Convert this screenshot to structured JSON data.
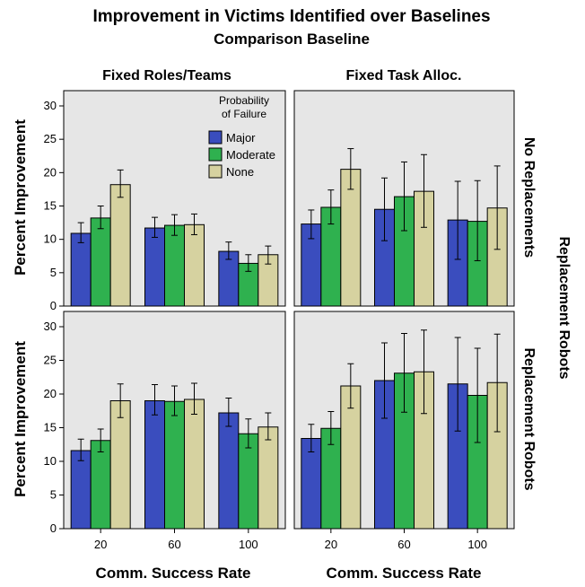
{
  "chart_data": {
    "type": "bar",
    "title": "Improvement in Victims Identified over Baselines",
    "subtitle": "Comparison Baseline",
    "xlabel": "Comm. Success Rate",
    "ylabel": "Percent Improvement",
    "row_group_label": "Replacement Robots",
    "categories": [
      "20",
      "60",
      "100"
    ],
    "ylim": [
      0,
      30
    ],
    "yticks": [
      0,
      5,
      10,
      15,
      20,
      25,
      30
    ],
    "legend": {
      "title": "Probability of Failure",
      "title_lines": [
        "Probability",
        "of Failure"
      ],
      "placement": "top-left panel, upper right",
      "entries": [
        {
          "name": "Major",
          "color": "#3a4dbe"
        },
        {
          "name": "Moderate",
          "color": "#2fb14f"
        },
        {
          "name": "None",
          "color": "#d6d2a0"
        }
      ]
    },
    "panel_background": "#e6e6e6",
    "panels": [
      {
        "column": "Fixed Roles/Teams",
        "row": "No Replacements",
        "series": [
          {
            "name": "Major",
            "values": [
              10.9,
              11.7,
              8.2
            ],
            "err": [
              [
                9.5,
                12.5
              ],
              [
                10.3,
                13.3
              ],
              [
                7.0,
                9.6
              ]
            ]
          },
          {
            "name": "Moderate",
            "values": [
              13.2,
              12.1,
              6.4
            ],
            "err": [
              [
                11.6,
                15.0
              ],
              [
                10.6,
                13.7
              ],
              [
                5.2,
                7.7
              ]
            ]
          },
          {
            "name": "None",
            "values": [
              18.2,
              12.2,
              7.7
            ],
            "err": [
              [
                16.3,
                20.4
              ],
              [
                10.7,
                13.8
              ],
              [
                6.3,
                9.0
              ]
            ]
          }
        ]
      },
      {
        "column": "Fixed Task Alloc.",
        "row": "No Replacements",
        "series": [
          {
            "name": "Major",
            "values": [
              12.3,
              14.5,
              12.9
            ],
            "err": [
              [
                10.1,
                14.4
              ],
              [
                9.8,
                19.2
              ],
              [
                7.0,
                18.7
              ]
            ]
          },
          {
            "name": "Moderate",
            "values": [
              14.8,
              16.4,
              12.7
            ],
            "err": [
              [
                12.3,
                17.4
              ],
              [
                11.3,
                21.6
              ],
              [
                6.8,
                18.8
              ]
            ]
          },
          {
            "name": "None",
            "values": [
              20.5,
              17.2,
              14.7
            ],
            "err": [
              [
                17.5,
                23.6
              ],
              [
                11.8,
                22.7
              ],
              [
                8.5,
                21.0
              ]
            ]
          }
        ]
      },
      {
        "column": "Fixed Roles/Teams",
        "row": "Replacement Robots",
        "series": [
          {
            "name": "Major",
            "values": [
              11.6,
              19.0,
              17.2
            ],
            "err": [
              [
                10.1,
                13.3
              ],
              [
                16.9,
                21.4
              ],
              [
                15.2,
                19.4
              ]
            ]
          },
          {
            "name": "Moderate",
            "values": [
              13.1,
              18.9,
              14.1
            ],
            "err": [
              [
                11.4,
                14.8
              ],
              [
                16.8,
                21.2
              ],
              [
                12.0,
                16.3
              ]
            ]
          },
          {
            "name": "None",
            "values": [
              19.0,
              19.2,
              15.1
            ],
            "err": [
              [
                16.5,
                21.5
              ],
              [
                17.0,
                21.6
              ],
              [
                13.2,
                17.2
              ]
            ]
          }
        ]
      },
      {
        "column": "Fixed Task Alloc.",
        "row": "Replacement Robots",
        "series": [
          {
            "name": "Major",
            "values": [
              13.4,
              22.0,
              21.5
            ],
            "err": [
              [
                11.4,
                15.5
              ],
              [
                16.4,
                27.6
              ],
              [
                14.5,
                28.4
              ]
            ]
          },
          {
            "name": "Moderate",
            "values": [
              14.9,
              23.1,
              19.8
            ],
            "err": [
              [
                12.5,
                17.4
              ],
              [
                17.3,
                29.0
              ],
              [
                12.8,
                26.8
              ]
            ]
          },
          {
            "name": "None",
            "values": [
              21.2,
              23.3,
              21.7
            ],
            "err": [
              [
                17.9,
                24.5
              ],
              [
                17.1,
                29.5
              ],
              [
                14.4,
                28.9
              ]
            ]
          }
        ]
      }
    ]
  }
}
